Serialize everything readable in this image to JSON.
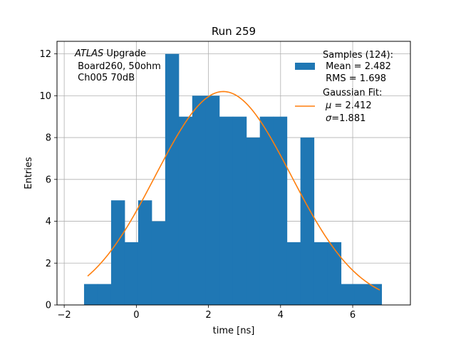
{
  "chart_data": {
    "type": "bar",
    "title": "Run 259",
    "xlabel": "time [ns]",
    "ylabel": "Entries",
    "xlim": [
      -2.2,
      7.6
    ],
    "ylim": [
      0,
      12.6
    ],
    "xticks": [
      -2,
      0,
      2,
      4,
      6
    ],
    "yticks": [
      0,
      2,
      4,
      6,
      8,
      10,
      12
    ],
    "grid": true,
    "bin_edges": [
      -1.45,
      -1.075,
      -0.7,
      -0.325,
      0.05,
      0.425,
      0.8,
      1.175,
      1.55,
      1.925,
      2.3,
      2.675,
      3.05,
      3.425,
      3.8,
      4.175,
      4.55,
      4.925,
      5.3,
      5.675,
      6.05,
      6.425,
      6.8
    ],
    "counts": [
      1,
      1,
      5,
      3,
      5,
      4,
      12,
      9,
      10,
      10,
      9,
      9,
      8,
      9,
      9,
      3,
      8,
      3,
      3,
      1,
      1,
      1
    ],
    "bar_color": "#1f77b4",
    "fit_color": "#ff7f0e",
    "fit": {
      "type": "gaussian",
      "amplitude": 10.2,
      "mu": 2.412,
      "sigma": 1.881,
      "x_range": [
        -1.35,
        6.75
      ]
    },
    "annotation": {
      "italic": "ATLAS",
      "line1_rest": " Upgrade",
      "line2": " Board260, 50ohm",
      "line3": " Ch005 70dB"
    },
    "legend": {
      "position": "top-right",
      "samples_title": "Samples (124):",
      "samples_mean": " Mean = 2.482",
      "samples_rms": " RMS = 1.698",
      "fit_title": "Gaussian Fit:",
      "fit_mu_symbol": "μ",
      "fit_mu_text": " = 2.412",
      "fit_sigma_symbol": "σ",
      "fit_sigma_text": "=1.881"
    }
  }
}
